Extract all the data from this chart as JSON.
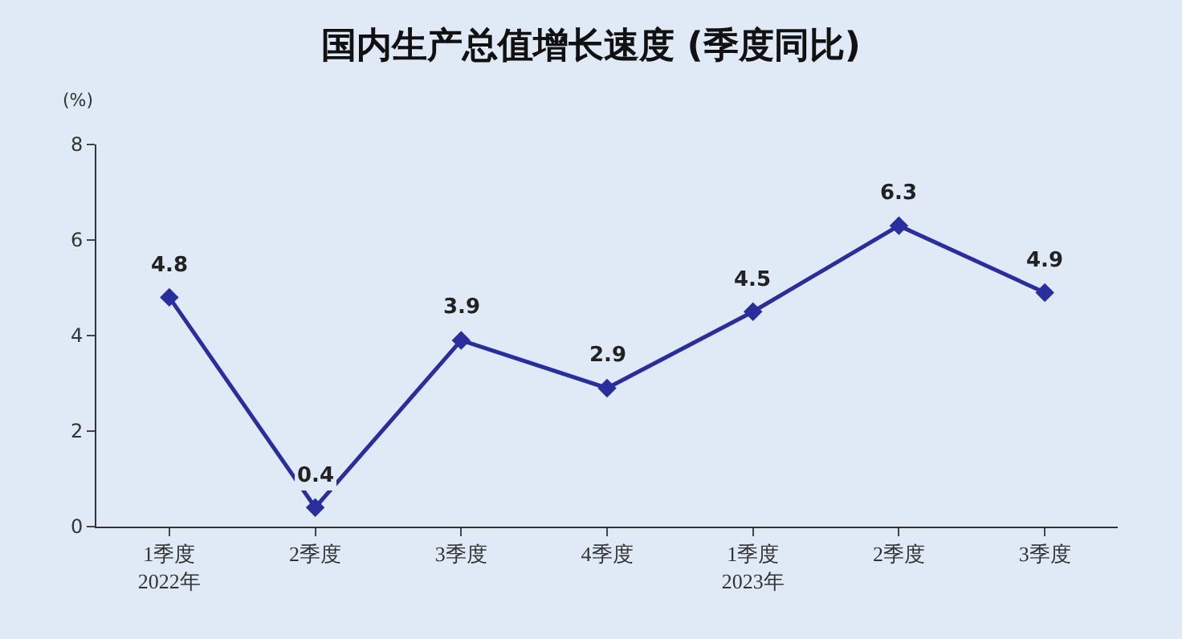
{
  "chart_data": {
    "type": "line",
    "title": "国内生产总值增长速度 (季度同比)",
    "ylabel": "(%)",
    "categories": [
      "1季度\n2022年",
      "2季度",
      "3季度",
      "4季度",
      "1季度\n2023年",
      "2季度",
      "3季度"
    ],
    "series": [
      {
        "color": "#2a2d9c",
        "values": [
          4.8,
          0.4,
          3.9,
          2.9,
          4.5,
          6.3,
          4.9
        ]
      }
    ],
    "ylim": [
      0,
      8
    ],
    "yticks": [
      0,
      2,
      4,
      6,
      8
    ],
    "grid": false,
    "legend": false,
    "marker": "diamond",
    "line_style": "solid",
    "data_labels": true
  }
}
